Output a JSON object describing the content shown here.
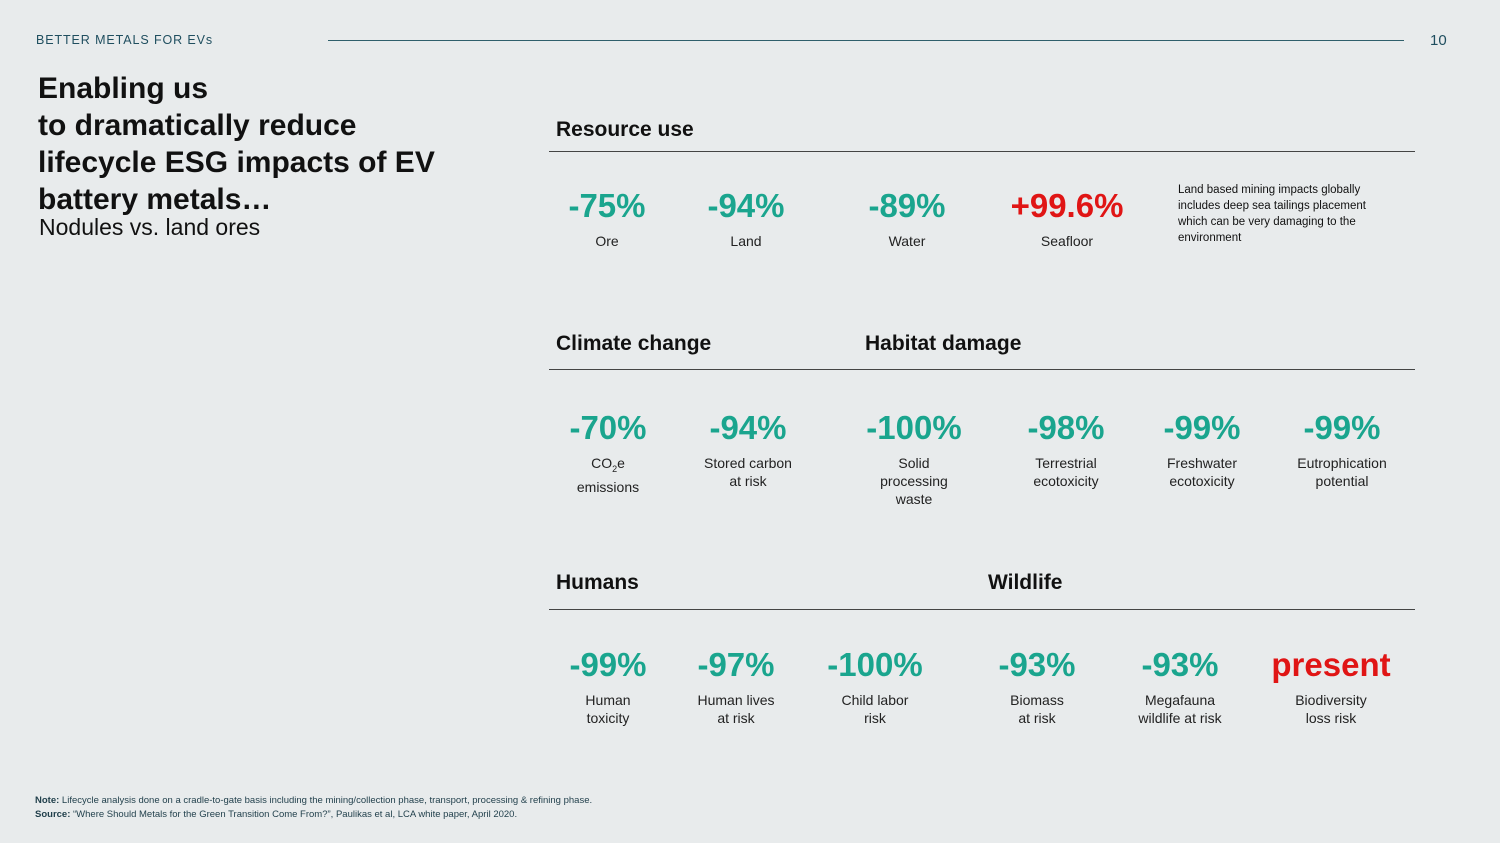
{
  "header": {
    "brand": "BETTER METALS FOR EVs",
    "page_number": "10"
  },
  "title": {
    "line1": "Enabling us",
    "line2": "to dramatically reduce",
    "line3": "lifecycle ESG impacts of EV",
    "line4": "battery metals…",
    "subtitle": "Nodules vs. land ores"
  },
  "sections": {
    "resource_use": "Resource use",
    "climate_change": "Climate change",
    "habitat_damage": "Habitat damage",
    "humans": "Humans",
    "wildlife": "Wildlife"
  },
  "resource": {
    "ore": {
      "value": "-75%",
      "label": "Ore"
    },
    "land": {
      "value": "-94%",
      "label": "Land"
    },
    "water": {
      "value": "-89%",
      "label": "Water"
    },
    "seafloor": {
      "value": "+99.6%",
      "label": "Seafloor"
    },
    "note": "Land based mining impacts globally includes deep sea tailings placement which can be very damaging to the environment"
  },
  "climate": {
    "co2": {
      "value": "-70%",
      "label_prefix": "CO",
      "label_sub": "2",
      "label_suffix": "e",
      "label_line2": "emissions"
    },
    "carbon": {
      "value": "-94%",
      "label": "Stored carbon\nat risk"
    }
  },
  "habitat": {
    "solid": {
      "value": "-100%",
      "label": "Solid\nprocessing\nwaste"
    },
    "terrestrial": {
      "value": "-98%",
      "label": "Terrestrial\necotoxicity"
    },
    "freshwater": {
      "value": "-99%",
      "label": "Freshwater\necotoxicity"
    },
    "eutrophication": {
      "value": "-99%",
      "label": "Eutrophication\npotential"
    }
  },
  "humans": {
    "toxicity": {
      "value": "-99%",
      "label": "Human\ntoxicity"
    },
    "lives": {
      "value": "-97%",
      "label": "Human lives\nat risk"
    },
    "child_labor": {
      "value": "-100%",
      "label": "Child labor\nrisk"
    }
  },
  "wildlife": {
    "biomass": {
      "value": "-93%",
      "label": "Biomass\nat risk"
    },
    "megafauna": {
      "value": "-93%",
      "label": "Megafauna\nwildlife at risk"
    },
    "biodiversity": {
      "value": "present",
      "label": "Biodiversity\nloss risk"
    }
  },
  "footer": {
    "note_label": "Note:",
    "note_text": " Lifecycle analysis done on a cradle-to-gate basis including the mining/collection phase, transport, processing & refining phase.",
    "source_label": "Source:",
    "source_text": " “Where Should Metals for the Green Transition Come From?”, Paulikas et al, LCA white paper, April 2020."
  },
  "colors": {
    "green": "#1aa58e",
    "red": "#e01515",
    "background": "#e8ebec",
    "brand_teal": "#1f4e5f"
  }
}
